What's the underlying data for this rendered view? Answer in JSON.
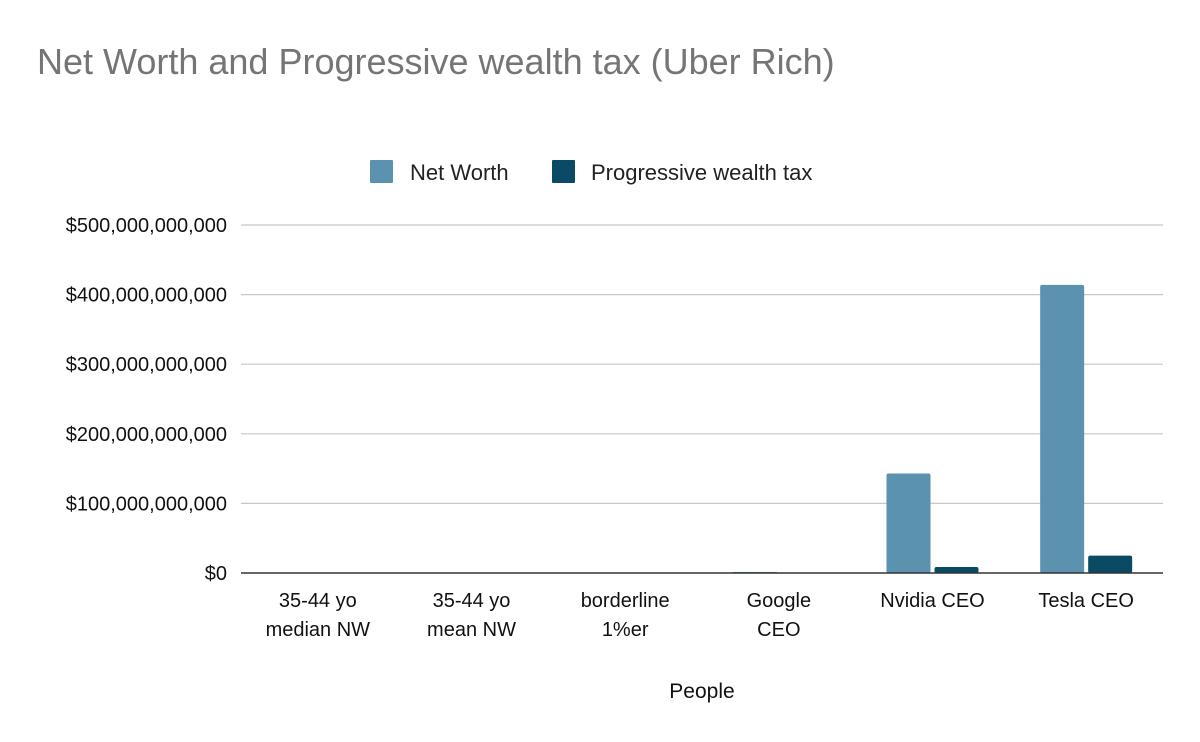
{
  "chart_data": {
    "type": "bar",
    "title": "Net Worth and Progressive wealth tax (Uber Rich)",
    "xlabel": "People",
    "ylabel": "",
    "categories": [
      [
        "35-44 yo",
        "median NW"
      ],
      [
        "35-44 yo",
        "mean NW"
      ],
      [
        "borderline",
        "1%er"
      ],
      [
        "Google",
        "CEO"
      ],
      [
        "Nvidia CEO"
      ],
      [
        "Tesla CEO"
      ]
    ],
    "series": [
      {
        "name": "Net Worth",
        "color": "#5a92b0",
        "values": [
          135000,
          450000,
          12000000,
          1500000000,
          143000000000,
          414000000000
        ]
      },
      {
        "name": "Progressive wealth tax",
        "color": "#0b4a64",
        "values": [
          0,
          0,
          0,
          30000000,
          8600000000,
          25000000000
        ]
      }
    ],
    "ylim": [
      0,
      500000000000
    ],
    "yticks": [
      0,
      100000000000,
      200000000000,
      300000000000,
      400000000000,
      500000000000
    ],
    "ytick_labels": [
      "$0",
      "$100,000,000,000",
      "$200,000,000,000",
      "$300,000,000,000",
      "$400,000,000,000",
      "$500,000,000,000"
    ],
    "grid": true,
    "legend_position": "top-center"
  }
}
